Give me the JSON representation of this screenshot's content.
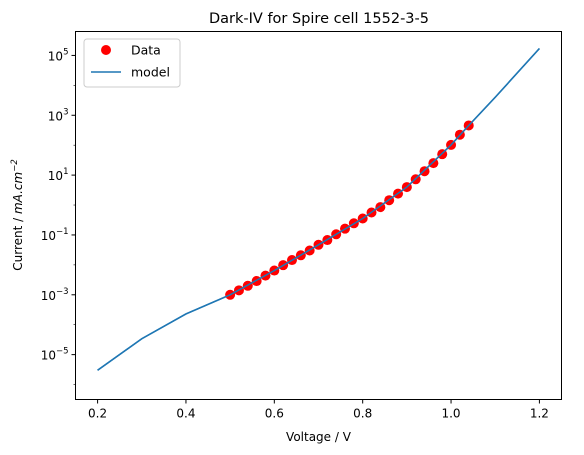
{
  "chart_data": {
    "type": "line",
    "title": "Dark-IV for Spire cell 1552-3-5",
    "xlabel": "Voltage / V",
    "ylabel_prefix": "Current / ",
    "ylabel_unit": "mA.cm",
    "ylabel_exp": "−2",
    "xlim": [
      0.15,
      1.25
    ],
    "ylim_log10": [
      -6.5,
      5.8
    ],
    "yscale": "log",
    "grid": false,
    "legend": "upper left",
    "x_ticks": [
      {
        "value": 0.2,
        "label": "0.2"
      },
      {
        "value": 0.4,
        "label": "0.4"
      },
      {
        "value": 0.6,
        "label": "0.6"
      },
      {
        "value": 0.8,
        "label": "0.8"
      },
      {
        "value": 1.0,
        "label": "1.0"
      },
      {
        "value": 1.2,
        "label": "1.2"
      }
    ],
    "y_ticks": [
      {
        "exp": 5,
        "base": "10",
        "sup": "5"
      },
      {
        "exp": 3,
        "base": "10",
        "sup": "3"
      },
      {
        "exp": 1,
        "base": "10",
        "sup": "1"
      },
      {
        "exp": -1,
        "base": "10",
        "sup": "−1"
      },
      {
        "exp": -3,
        "base": "10",
        "sup": "−3"
      },
      {
        "exp": -5,
        "base": "10",
        "sup": "−5"
      }
    ],
    "series": [
      {
        "name": "Data",
        "kind": "scatter",
        "color": "#ff0000",
        "x": [
          0.5,
          0.52,
          0.54,
          0.56,
          0.58,
          0.6,
          0.62,
          0.64,
          0.66,
          0.68,
          0.7,
          0.72,
          0.74,
          0.76,
          0.78,
          0.8,
          0.82,
          0.84,
          0.86,
          0.88,
          0.9,
          0.92,
          0.94,
          0.96,
          0.98,
          1.0,
          1.02,
          1.04
        ],
        "y": [
          0.001,
          0.00141,
          0.002,
          0.00288,
          0.00437,
          0.00646,
          0.00977,
          0.0145,
          0.0209,
          0.0302,
          0.0468,
          0.0676,
          0.105,
          0.162,
          0.245,
          0.355,
          0.562,
          0.851,
          1.45,
          2.4,
          3.98,
          7.24,
          13.5,
          25.1,
          50.1,
          102,
          224,
          457
        ]
      },
      {
        "name": "model",
        "kind": "line",
        "color": "#1f77b4",
        "x": [
          0.2,
          0.3,
          0.4,
          0.5,
          0.6,
          0.7,
          0.8,
          0.9,
          1.0,
          1.04,
          1.1,
          1.2
        ],
        "y": [
          3e-06,
          3.4e-05,
          0.000229,
          0.001,
          0.00646,
          0.0468,
          0.355,
          3.98,
          102,
          457,
          4000,
          170000
        ]
      }
    ]
  }
}
